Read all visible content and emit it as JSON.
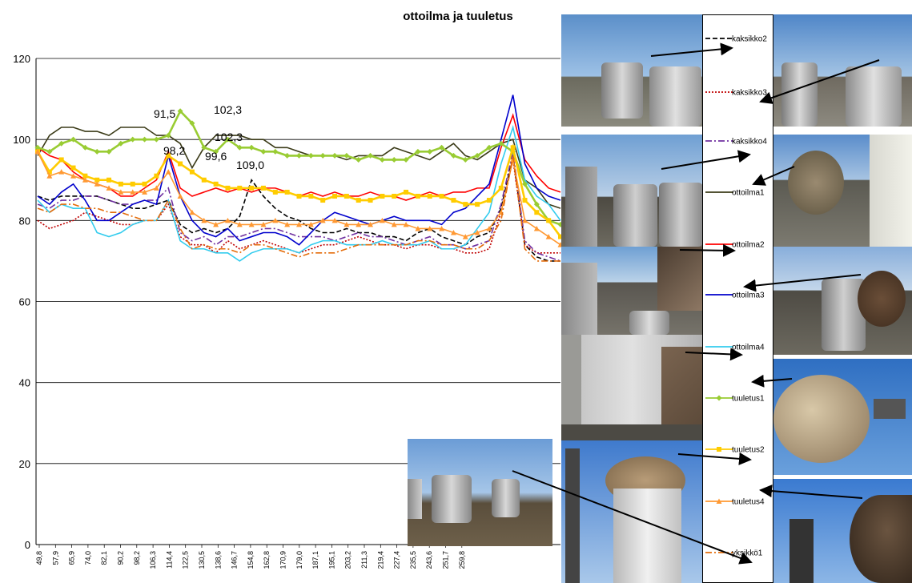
{
  "chart_data": {
    "type": "line",
    "title": "ottoilma ja tuuletus",
    "ylim": [
      0,
      120
    ],
    "yticks": [
      "0",
      "20",
      "40",
      "60",
      "80",
      "100",
      "120"
    ],
    "xticks": [
      "49,8",
      "57,9",
      "65,9",
      "74,0",
      "82,1",
      "90,2",
      "98,2",
      "106,3",
      "114,4",
      "122,5",
      "130,5",
      "138,6",
      "146,7",
      "154,8",
      "162,8",
      "170,9",
      "179,0",
      "187,1",
      "195,1",
      "203,2",
      "211,3",
      "219,4",
      "227,4",
      "235,5",
      "243,6",
      "251,7",
      "259,8"
    ],
    "grid": true,
    "legend_position": "right",
    "series": [
      {
        "name": "kaksikko2",
        "color": "#000000",
        "dash": "6,3",
        "values": [
          86,
          85,
          86,
          86,
          86,
          86,
          85,
          84,
          83,
          83,
          84,
          85,
          79,
          77,
          78,
          77,
          78,
          81,
          90,
          86,
          83,
          81,
          80,
          78,
          77,
          77,
          78,
          77,
          77,
          76,
          76,
          75,
          77,
          78,
          76,
          75,
          74,
          76,
          77,
          83,
          96,
          74,
          71,
          70,
          70
        ]
      },
      {
        "name": "kaksikko3",
        "color": "#c00000",
        "dash": "2,2",
        "values": [
          80,
          78,
          79,
          80,
          82,
          81,
          80,
          79,
          79,
          80,
          80,
          84,
          76,
          74,
          74,
          72,
          75,
          73,
          74,
          75,
          74,
          73,
          72,
          73,
          74,
          74,
          75,
          76,
          75,
          74,
          74,
          73,
          74,
          74,
          73,
          73,
          72,
          72,
          73,
          82,
          95,
          74,
          72,
          72,
          72
        ]
      },
      {
        "name": "kaksikko4",
        "color": "#7030a0",
        "dash": "8,3,2,3",
        "values": [
          84,
          83,
          85,
          85,
          86,
          86,
          85,
          84,
          84,
          85,
          85,
          88,
          77,
          75,
          76,
          74,
          76,
          76,
          77,
          78,
          78,
          77,
          76,
          76,
          76,
          75,
          76,
          77,
          76,
          76,
          75,
          74,
          75,
          76,
          74,
          74,
          73,
          74,
          75,
          84,
          97,
          75,
          72,
          71,
          70
        ]
      },
      {
        "name": "ottoilma1",
        "color": "#3b3b18",
        "dash": "",
        "values": [
          96,
          101,
          103,
          103,
          102,
          102,
          101,
          103,
          103,
          103,
          101,
          101,
          99,
          93,
          98,
          101,
          101,
          101,
          100,
          100,
          98,
          98,
          97,
          96,
          96,
          96,
          95,
          96,
          96,
          96,
          98,
          97,
          96,
          95,
          97,
          99,
          96,
          95,
          97,
          99,
          100,
          90,
          88,
          84,
          83
        ]
      },
      {
        "name": "ottoilma2",
        "color": "#ff0000",
        "dash": "",
        "values": [
          98,
          96,
          95,
          92,
          90,
          89,
          88,
          86,
          86,
          88,
          90,
          97,
          88,
          86,
          87,
          88,
          87,
          88,
          87,
          88,
          88,
          87,
          86,
          87,
          86,
          87,
          86,
          86,
          87,
          86,
          86,
          85,
          86,
          87,
          86,
          87,
          87,
          88,
          88,
          98,
          106,
          95,
          91,
          88,
          87
        ]
      },
      {
        "name": "ottoilma3",
        "color": "#0000cc",
        "dash": "",
        "values": [
          86,
          84,
          87,
          89,
          85,
          80,
          80,
          82,
          84,
          85,
          84,
          96,
          86,
          80,
          77,
          76,
          78,
          75,
          76,
          77,
          77,
          76,
          74,
          77,
          80,
          82,
          81,
          80,
          79,
          80,
          81,
          80,
          80,
          80,
          79,
          82,
          83,
          86,
          89,
          100,
          111,
          94,
          88,
          86,
          85
        ]
      },
      {
        "name": "ottoilma4",
        "color": "#33ccee",
        "dash": "",
        "values": [
          85,
          82,
          84,
          83,
          83,
          77,
          76,
          77,
          79,
          80,
          80,
          85,
          75,
          73,
          73,
          72,
          72,
          70,
          72,
          73,
          73,
          73,
          72,
          74,
          75,
          75,
          74,
          74,
          74,
          75,
          74,
          74,
          74,
          75,
          73,
          73,
          74,
          78,
          82,
          94,
          103,
          90,
          86,
          84,
          80
        ]
      },
      {
        "name": "tuuletus1",
        "color": "#99cc33",
        "dash": "",
        "marker": "diamond",
        "values": [
          98,
          97,
          99,
          100,
          98,
          97,
          97,
          99,
          100,
          100,
          100,
          101,
          107,
          104,
          98,
          97,
          100,
          98,
          98,
          97,
          97,
          96,
          96,
          96,
          96,
          96,
          96,
          95,
          96,
          95,
          95,
          95,
          97,
          97,
          98,
          96,
          95,
          96,
          98,
          99,
          97,
          89,
          84,
          80,
          79
        ]
      },
      {
        "name": "tuuletus2",
        "color": "#ffcc00",
        "dash": "",
        "marker": "square",
        "values": [
          97,
          92,
          95,
          93,
          91,
          90,
          90,
          89,
          89,
          89,
          91,
          96,
          94,
          92,
          90,
          89,
          88,
          88,
          88,
          88,
          87,
          87,
          86,
          86,
          85,
          86,
          86,
          85,
          85,
          86,
          86,
          87,
          86,
          86,
          86,
          85,
          84,
          84,
          85,
          88,
          98,
          85,
          82,
          80,
          76
        ]
      },
      {
        "name": "tuuletus4",
        "color": "#ff9933",
        "dash": "",
        "marker": "triangle",
        "values": [
          97,
          91,
          92,
          91,
          90,
          89,
          88,
          87,
          87,
          87,
          88,
          92,
          86,
          82,
          80,
          79,
          80,
          79,
          79,
          79,
          80,
          79,
          79,
          79,
          80,
          80,
          79,
          79,
          79,
          80,
          79,
          79,
          78,
          78,
          78,
          77,
          76,
          77,
          78,
          82,
          95,
          80,
          78,
          76,
          74
        ]
      },
      {
        "name": "yksikkö1",
        "color": "#e46c0a",
        "dash": "8,3,2,3",
        "values": [
          83,
          82,
          84,
          84,
          83,
          83,
          82,
          82,
          81,
          80,
          80,
          85,
          78,
          73,
          74,
          73,
          73,
          72,
          74,
          74,
          73,
          72,
          71,
          72,
          72,
          72,
          73,
          74,
          74,
          74,
          74,
          74,
          75,
          75,
          74,
          74,
          73,
          73,
          75,
          80,
          96,
          73,
          70,
          70,
          70
        ]
      }
    ],
    "annotations": [
      "91,5",
      "102,3",
      "102,3",
      "98,2",
      "99,6",
      "109,0"
    ]
  },
  "icons": {
    "photos": "site-photo",
    "arrows": "arrow"
  }
}
